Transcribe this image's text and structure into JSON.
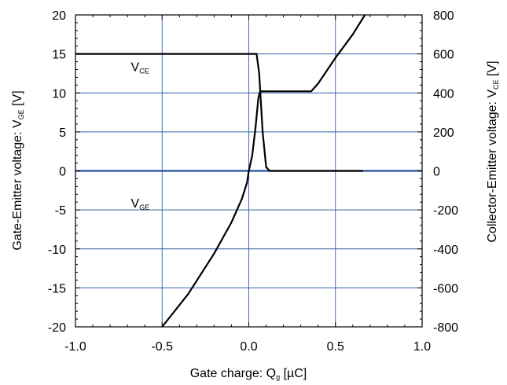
{
  "chart_data": {
    "type": "line",
    "xlabel": {
      "main": "Gate charge: Q",
      "sub": "g",
      "unit": " [µC]"
    },
    "ylabel_left": {
      "main": "Gate-Emitter voltage:  V",
      "sub": "GE",
      "unit": " [V]"
    },
    "ylabel_right": {
      "main": "Collector-Emitter voltage: V",
      "sub": "CE",
      "unit": " [V]"
    },
    "xlim": [
      -1.0,
      1.0
    ],
    "ylim_left": [
      -20,
      20
    ],
    "ylim_right": [
      -800,
      800
    ],
    "x_ticks": [
      "-1.0",
      "-0.5",
      "0.0",
      "0.5",
      "1.0"
    ],
    "y_left_ticks": [
      "20",
      "15",
      "10",
      "5",
      "0",
      "-5",
      "-10",
      "-15",
      "-20"
    ],
    "y_right_ticks": [
      "800",
      "600",
      "400",
      "200",
      "0",
      "-200",
      "-400",
      "-600",
      "-800"
    ],
    "grid": true,
    "zero_line_color": "#1f4e9c",
    "grid_color": "#2f5fa8",
    "series": [
      {
        "name": "VCE",
        "label_main": "V",
        "label_sub": "CE",
        "axis": "right",
        "label_pos": {
          "x": -0.68,
          "y": 12.8
        },
        "points": [
          [
            -1.0,
            600
          ],
          [
            0.045,
            600
          ],
          [
            0.06,
            500
          ],
          [
            0.08,
            200
          ],
          [
            0.1,
            20
          ],
          [
            0.12,
            0
          ],
          [
            0.66,
            0
          ]
        ]
      },
      {
        "name": "VGE",
        "label_main": "V",
        "label_sub": "GE",
        "axis": "left",
        "label_pos": {
          "x": -0.68,
          "y": -4.7
        },
        "points": [
          [
            -0.5,
            -20
          ],
          [
            -0.35,
            -15.8
          ],
          [
            -0.2,
            -10.6
          ],
          [
            -0.1,
            -6.6
          ],
          [
            -0.04,
            -3.6
          ],
          [
            -0.01,
            -1.5
          ],
          [
            0.0,
            0.0
          ],
          [
            0.02,
            2.0
          ],
          [
            0.04,
            5.8
          ],
          [
            0.055,
            9.3
          ],
          [
            0.065,
            10.2
          ],
          [
            0.36,
            10.2
          ],
          [
            0.4,
            11.2
          ],
          [
            0.5,
            14.5
          ],
          [
            0.6,
            17.5
          ],
          [
            0.67,
            20.0
          ]
        ]
      }
    ]
  }
}
